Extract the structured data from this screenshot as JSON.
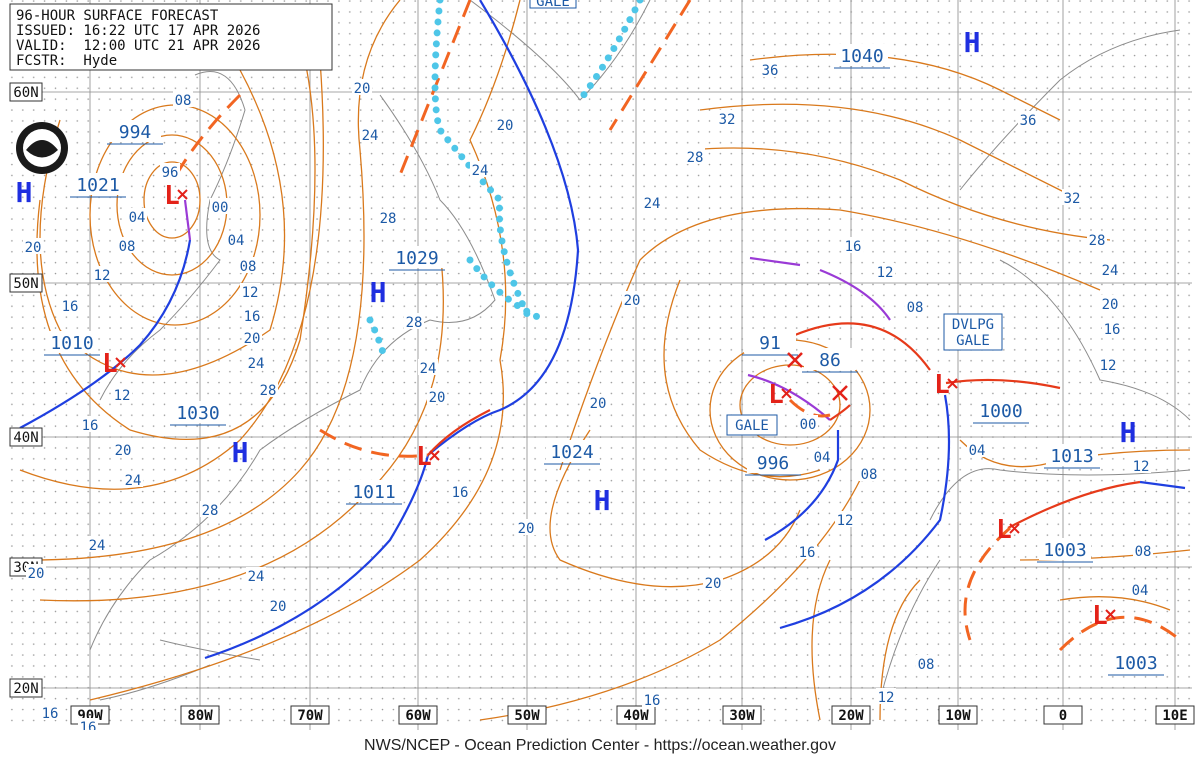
{
  "header": {
    "lines": [
      "96-HOUR SURFACE FORECAST",
      "ISSUED: 16:22 UTC 17 APR 2026",
      "VALID:  12:00 UTC 21 APR 2026",
      "FCSTR:  Hyde"
    ]
  },
  "lat_labels": [
    "60N",
    "50N",
    "40N",
    "30N",
    "20N"
  ],
  "lon_labels": [
    "90W",
    "80W",
    "70W",
    "60W",
    "50W",
    "40W",
    "30W",
    "20W",
    "10W",
    "0",
    "10E"
  ],
  "centers": [
    "994",
    "1021",
    "1029",
    "1010",
    "1030",
    "1011",
    "1024",
    "1040",
    "91",
    "86",
    "996",
    "1000",
    "1013",
    "1003",
    "1003"
  ],
  "highs": [
    "H",
    "H",
    "H",
    "H",
    "H",
    "H"
  ],
  "lows": [
    "L",
    "L",
    "L",
    "L",
    "L",
    "L",
    "L"
  ],
  "warnings": [
    "GALE",
    "GALE",
    "DVLPG",
    "GALE"
  ],
  "isobar_labels": [
    "08",
    "96",
    "04",
    "00",
    "04",
    "08",
    "08",
    "12",
    "12",
    "16",
    "16",
    "20",
    "20",
    "24",
    "28",
    "12",
    "16",
    "20",
    "24",
    "28",
    "24",
    "20",
    "24",
    "20",
    "20",
    "24",
    "28",
    "28",
    "24",
    "20",
    "20",
    "24",
    "16",
    "20",
    "20",
    "20",
    "16",
    "36",
    "32",
    "28",
    "24",
    "20",
    "16",
    "12",
    "08",
    "12",
    "16",
    "20",
    "24",
    "28",
    "32",
    "36",
    "04",
    "08",
    "12",
    "16",
    "04",
    "00",
    "12",
    "08",
    "04",
    "08",
    "12",
    "16",
    "16"
  ],
  "footer": "NWS/NCEP - Ocean Prediction Center - https://ocean.weather.gov"
}
